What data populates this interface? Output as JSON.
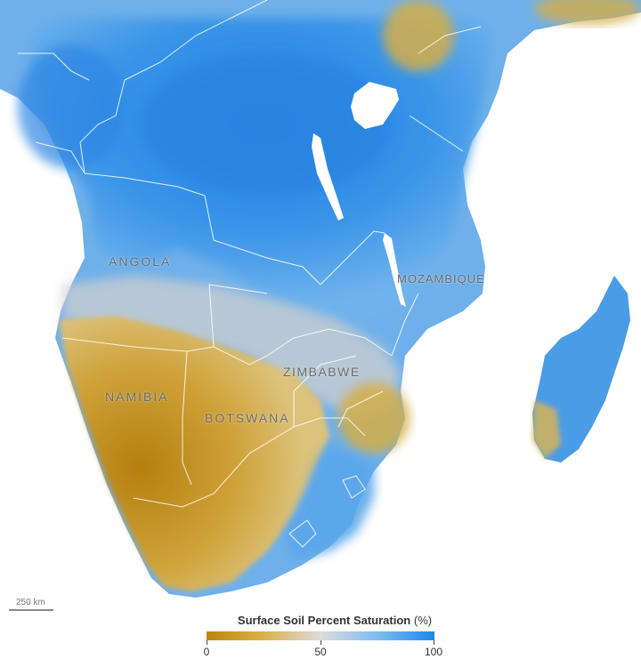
{
  "map": {
    "labels": {
      "angola": "ANGOLA",
      "mozambique": "MOZAMBIQUE",
      "zimbabwe": "ZIMBABWE",
      "namibia": "NAMIBIA",
      "botswana": "BOTSWANA"
    },
    "scalebar": "250 km"
  },
  "legend": {
    "title": "Surface Soil Percent Saturation",
    "unit": "(%)",
    "ticks": [
      "0",
      "50",
      "100"
    ],
    "colors": {
      "dry": "#c8900f",
      "mid": "#dcdcdc",
      "wet": "#2f8fe6"
    }
  }
}
